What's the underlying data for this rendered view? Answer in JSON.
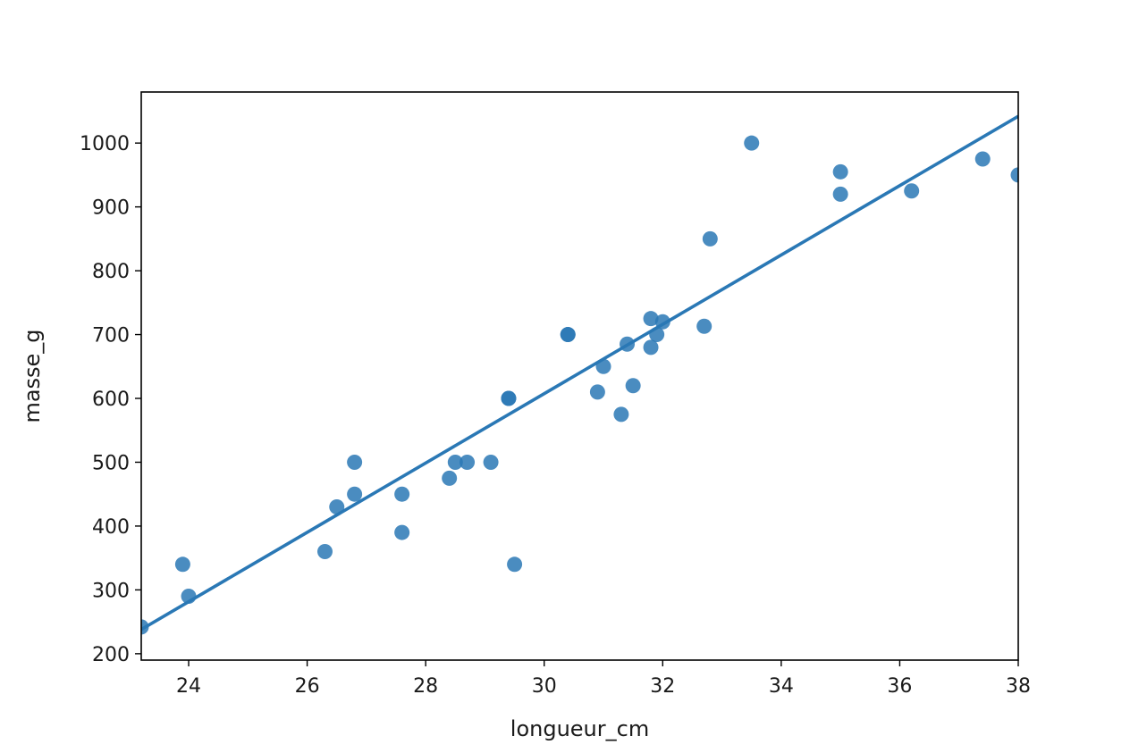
{
  "chart_data": {
    "type": "scatter",
    "xlabel": "longueur_cm",
    "ylabel": "masse_g",
    "xlim": [
      23.2,
      38.0
    ],
    "ylim": [
      190,
      1080
    ],
    "xticks": [
      24,
      26,
      28,
      30,
      32,
      34,
      36,
      38
    ],
    "xtick_labels": [
      "24",
      "26",
      "28",
      "30",
      "32",
      "34",
      "36",
      "38"
    ],
    "yticks": [
      200,
      300,
      400,
      500,
      600,
      700,
      800,
      900,
      1000
    ],
    "ytick_labels": [
      "200",
      "300",
      "400",
      "500",
      "600",
      "700",
      "800",
      "900",
      "1000"
    ],
    "grid": false,
    "color": "#2a78b5",
    "points": [
      [
        23.2,
        242
      ],
      [
        23.9,
        340
      ],
      [
        24.0,
        290
      ],
      [
        26.3,
        360
      ],
      [
        26.5,
        430
      ],
      [
        26.8,
        500
      ],
      [
        26.8,
        450
      ],
      [
        27.6,
        390
      ],
      [
        27.6,
        450
      ],
      [
        28.4,
        475
      ],
      [
        28.5,
        500
      ],
      [
        28.7,
        500
      ],
      [
        29.1,
        500
      ],
      [
        29.4,
        600
      ],
      [
        29.4,
        600
      ],
      [
        29.5,
        340
      ],
      [
        30.4,
        700
      ],
      [
        30.4,
        700
      ],
      [
        30.9,
        610
      ],
      [
        31.0,
        650
      ],
      [
        31.3,
        575
      ],
      [
        31.4,
        685
      ],
      [
        31.5,
        620
      ],
      [
        31.8,
        725
      ],
      [
        31.8,
        680
      ],
      [
        31.9,
        700
      ],
      [
        32.0,
        720
      ],
      [
        32.7,
        713
      ],
      [
        32.8,
        850
      ],
      [
        33.5,
        1000
      ],
      [
        35.0,
        955
      ],
      [
        35.0,
        920
      ],
      [
        36.2,
        925
      ],
      [
        37.4,
        975
      ],
      [
        38.0,
        950
      ]
    ],
    "regression_line": {
      "x": [
        23.2,
        38.0
      ],
      "y": [
        238,
        1042
      ]
    }
  }
}
